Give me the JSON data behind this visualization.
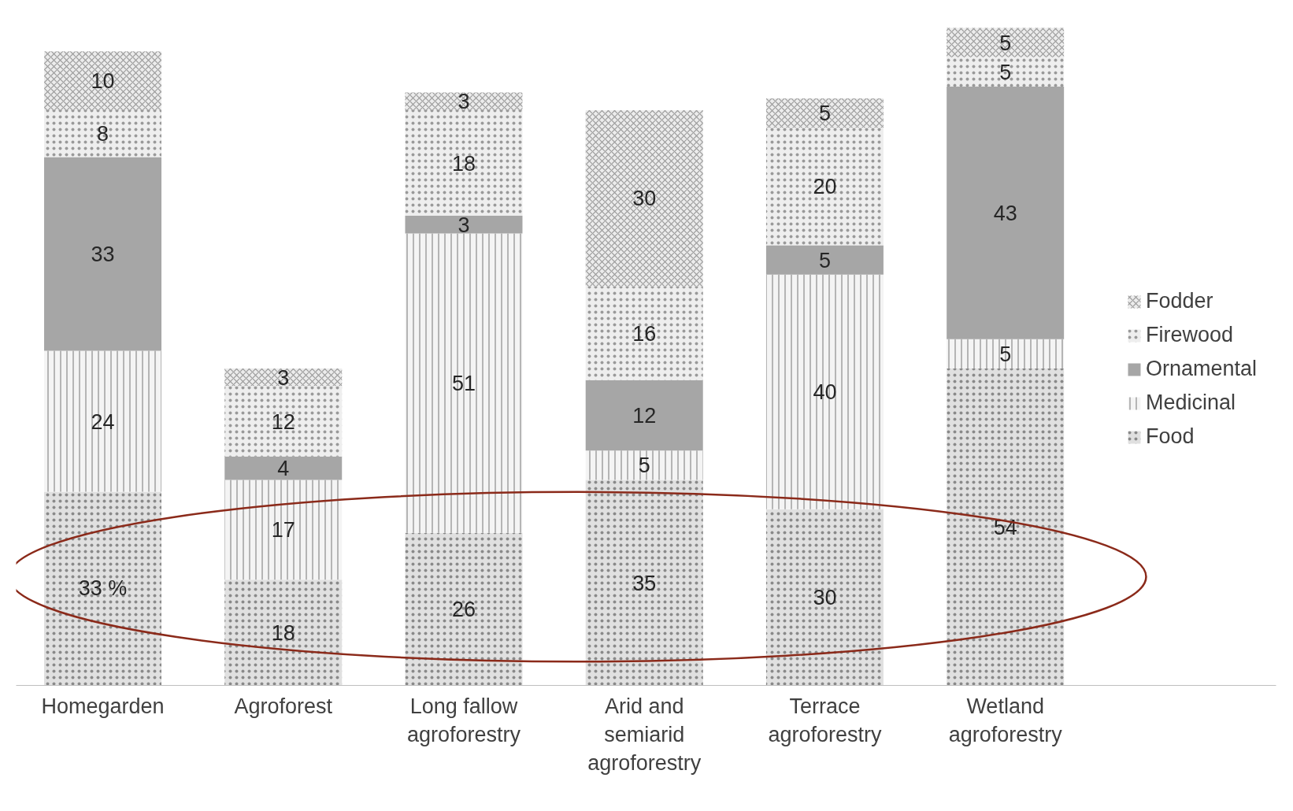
{
  "chart_data": {
    "type": "bar",
    "stacked": true,
    "categories": [
      "Homegarden",
      "Agroforest",
      "Long fallow agroforestry",
      "Arid and semiarid agroforestry",
      "Terrace agroforestry",
      "Wetland agroforestry"
    ],
    "series": [
      {
        "name": "Food",
        "color": "#e0e0e0",
        "values": [
          33,
          18,
          26,
          35,
          30,
          54
        ],
        "value_labels": [
          "33 %",
          "18",
          "26",
          "35",
          "30",
          "54"
        ]
      },
      {
        "name": "Medicinal",
        "color": "#f4f4f4",
        "values": [
          24,
          17,
          51,
          5,
          40,
          5
        ],
        "value_labels": [
          "24",
          "17",
          "51",
          "5",
          "40",
          "5"
        ]
      },
      {
        "name": "Ornamental",
        "color": "#a6a6a6",
        "values": [
          33,
          4,
          3,
          12,
          5,
          43
        ],
        "value_labels": [
          "33",
          "4",
          "3",
          "12",
          "5",
          "43"
        ]
      },
      {
        "name": "Firewood",
        "color": "#eeeeee",
        "values": [
          8,
          12,
          18,
          16,
          20,
          5
        ],
        "value_labels": [
          "8",
          "12",
          "18",
          "16",
          "20",
          "5"
        ]
      },
      {
        "name": "Fodder",
        "color": "#ececec",
        "values": [
          10,
          3,
          3,
          30,
          5,
          5
        ],
        "value_labels": [
          "10",
          "3",
          "3",
          "30",
          "5",
          "5"
        ]
      }
    ],
    "legend": "right",
    "grid": false
  }
}
